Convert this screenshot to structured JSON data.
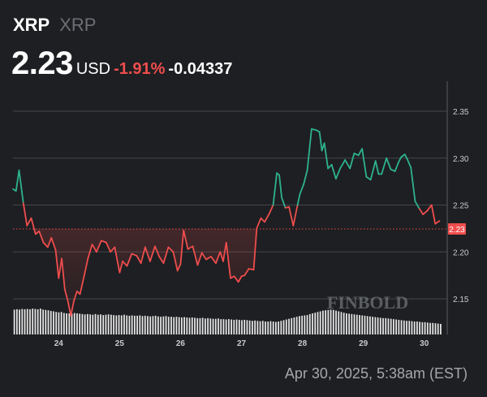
{
  "header": {
    "symbol": "XRP",
    "symbol_secondary": "XRP",
    "price": "2.23",
    "currency": "USD",
    "change_percent": "-1.91%",
    "change_value": "-0.04337"
  },
  "footer": {
    "timestamp": "Apr 30, 2025, 5:38am (EST)"
  },
  "watermark": "FINBOLD",
  "colors": {
    "background": "#1e1f22",
    "up": "#2db38f",
    "down": "#ef4d4d",
    "grid": "#45474b",
    "volume": "#e6e6e6",
    "price_badge": "#ef4d4d"
  },
  "chart_data": {
    "type": "line",
    "title": "",
    "xlabel": "",
    "ylabel": "",
    "x_tick_labels": [
      "24",
      "25",
      "26",
      "27",
      "28",
      "29",
      "30"
    ],
    "x_tick_values": [
      24,
      25,
      26,
      27,
      28,
      29,
      30
    ],
    "y_tick_labels": [
      "2.15",
      "2.20",
      "2.25",
      "2.30",
      "2.35"
    ],
    "y_tick_values": [
      2.15,
      2.2,
      2.25,
      2.3,
      2.35
    ],
    "xlim": [
      23.25,
      30.35
    ],
    "ylim": [
      2.112,
      2.382
    ],
    "grid": true,
    "reference_level": 2.2245,
    "current_price_label": "2.23",
    "series": [
      {
        "x": [
          23.25,
          23.3,
          23.35,
          23.42,
          23.48,
          23.55,
          23.62,
          23.68,
          23.75,
          23.82,
          23.88,
          23.95,
          24.0,
          24.05,
          24.1,
          24.15,
          24.2,
          24.25,
          24.3,
          24.35,
          24.42,
          24.48,
          24.55,
          24.62,
          24.7,
          24.78,
          24.85,
          24.92,
          25.0,
          25.05,
          25.12,
          25.2,
          25.28,
          25.35,
          25.42,
          25.5,
          25.58,
          25.65,
          25.72,
          25.8,
          25.88,
          25.95,
          26.0,
          26.05,
          26.12,
          26.2,
          26.28,
          26.35,
          26.42,
          26.5,
          26.58,
          26.65,
          26.7,
          26.75,
          26.82,
          26.88,
          26.95,
          27.0,
          27.05,
          27.12,
          27.2,
          27.25,
          27.28,
          27.32,
          27.38,
          27.45,
          27.52,
          27.58,
          27.62,
          27.66,
          27.72,
          27.78,
          27.85,
          27.92,
          27.96,
          28.02,
          28.08,
          28.15,
          28.22,
          28.28,
          28.32,
          28.36,
          28.42,
          28.48,
          28.55,
          28.62,
          28.7,
          28.78,
          28.85,
          28.92,
          28.98,
          29.05,
          29.12,
          29.2,
          29.25,
          29.3,
          29.38,
          29.45,
          29.52,
          29.58,
          29.62,
          29.68,
          29.72,
          29.78,
          29.85,
          29.92,
          29.98,
          30.05,
          30.12,
          30.18,
          30.25
        ],
        "y": [
          2.267,
          2.265,
          2.287,
          2.252,
          2.228,
          2.236,
          2.219,
          2.222,
          2.21,
          2.205,
          2.215,
          2.202,
          2.172,
          2.193,
          2.16,
          2.148,
          2.132,
          2.148,
          2.158,
          2.155,
          2.175,
          2.193,
          2.208,
          2.2,
          2.212,
          2.21,
          2.2,
          2.205,
          2.178,
          2.19,
          2.185,
          2.198,
          2.196,
          2.188,
          2.205,
          2.19,
          2.206,
          2.195,
          2.188,
          2.205,
          2.2,
          2.18,
          2.187,
          2.223,
          2.203,
          2.206,
          2.186,
          2.199,
          2.192,
          2.195,
          2.188,
          2.2,
          2.19,
          2.21,
          2.172,
          2.174,
          2.168,
          2.174,
          2.175,
          2.182,
          2.181,
          2.225,
          2.23,
          2.236,
          2.232,
          2.24,
          2.25,
          2.284,
          2.282,
          2.258,
          2.247,
          2.248,
          2.228,
          2.25,
          2.262,
          2.272,
          2.287,
          2.331,
          2.33,
          2.328,
          2.308,
          2.316,
          2.289,
          2.293,
          2.278,
          2.289,
          2.298,
          2.289,
          2.305,
          2.303,
          2.31,
          2.28,
          2.277,
          2.297,
          2.283,
          2.283,
          2.3,
          2.288,
          2.286,
          2.296,
          2.301,
          2.304,
          2.299,
          2.29,
          2.254,
          2.246,
          2.24,
          2.244,
          2.25,
          2.23,
          2.233
        ]
      }
    ],
    "volume": {
      "x_start": 23.26,
      "x_end": 30.3,
      "values": [
        0.73,
        0.74,
        0.73,
        0.75,
        0.74,
        0.75,
        0.74,
        0.76,
        0.75,
        0.74,
        0.76,
        0.73,
        0.72,
        0.71,
        0.69,
        0.68,
        0.66,
        0.65,
        0.66,
        0.63,
        0.62,
        0.62,
        0.61,
        0.63,
        0.62,
        0.61,
        0.6,
        0.59,
        0.6,
        0.59,
        0.58,
        0.6,
        0.58,
        0.59,
        0.57,
        0.58,
        0.59,
        0.58,
        0.57,
        0.56,
        0.57,
        0.56,
        0.58,
        0.56,
        0.55,
        0.56,
        0.55,
        0.55,
        0.56,
        0.54,
        0.55,
        0.54,
        0.53,
        0.54,
        0.55,
        0.53,
        0.52,
        0.53,
        0.54,
        0.52,
        0.52,
        0.51,
        0.52,
        0.51,
        0.5,
        0.51,
        0.5,
        0.49,
        0.5,
        0.49,
        0.48,
        0.48,
        0.49,
        0.47,
        0.48,
        0.47,
        0.46,
        0.46,
        0.47,
        0.45,
        0.45,
        0.44,
        0.45,
        0.44,
        0.43,
        0.44,
        0.43,
        0.42,
        0.43,
        0.42,
        0.41,
        0.4,
        0.41,
        0.4,
        0.39,
        0.4,
        0.38,
        0.38,
        0.39,
        0.38,
        0.37,
        0.38,
        0.4,
        0.42,
        0.44,
        0.46,
        0.48,
        0.5,
        0.52,
        0.54,
        0.55,
        0.56,
        0.57,
        0.6,
        0.62,
        0.64,
        0.66,
        0.68,
        0.7,
        0.71,
        0.72,
        0.73,
        0.72,
        0.7,
        0.68,
        0.66,
        0.64,
        0.62,
        0.61,
        0.6,
        0.59,
        0.58,
        0.57,
        0.56,
        0.55,
        0.54,
        0.53,
        0.52,
        0.51,
        0.5,
        0.49,
        0.48,
        0.48,
        0.47,
        0.46,
        0.45,
        0.44,
        0.43,
        0.42,
        0.41,
        0.4,
        0.4,
        0.39,
        0.38,
        0.38,
        0.37,
        0.36,
        0.36,
        0.35,
        0.34,
        0.34,
        0.33,
        0.32,
        0.31
      ]
    }
  }
}
